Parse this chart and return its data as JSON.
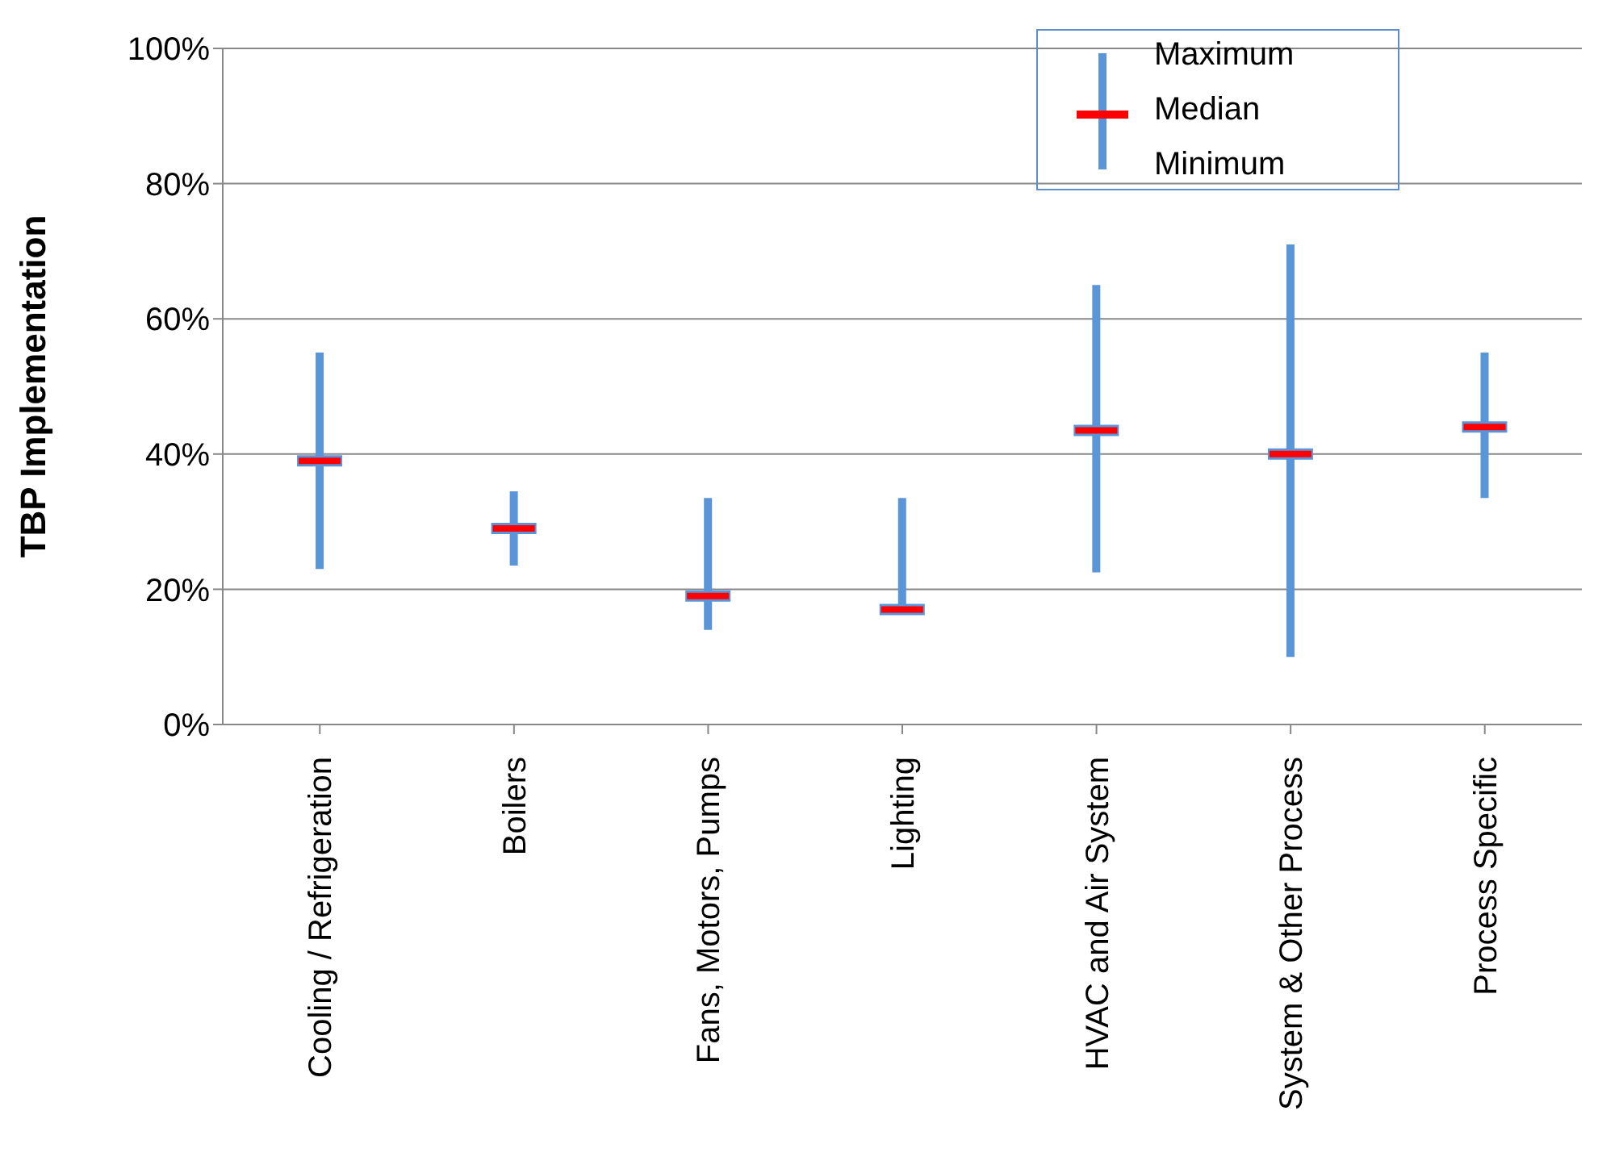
{
  "chart_data": {
    "type": "box",
    "ylabel": "TBP Implementation",
    "categories": [
      "Cooling / Refrigeration",
      "Boilers",
      "Fans, Motors, Pumps",
      "Lighting",
      "HVAC and Air System",
      "System & Other Process",
      "Process Specific"
    ],
    "boxes": [
      {
        "low": 23,
        "q1": 39,
        "median": 39,
        "q3": 39,
        "high": 55
      },
      {
        "low": 23.5,
        "q1": 29,
        "median": 29,
        "q3": 29,
        "high": 34.5
      },
      {
        "low": 14,
        "q1": 19,
        "median": 19,
        "q3": 19,
        "high": 33.5
      },
      {
        "low": 16.5,
        "q1": 17,
        "median": 17,
        "q3": 17,
        "high": 33.5
      },
      {
        "low": 22.5,
        "q1": 43.5,
        "median": 43.5,
        "q3": 43.5,
        "high": 65
      },
      {
        "low": 10,
        "q1": 40,
        "median": 40,
        "q3": 40,
        "high": 71
      },
      {
        "low": 33.5,
        "q1": 44,
        "median": 44,
        "q3": 44,
        "high": 55
      }
    ],
    "color": "#5b95d9",
    "ylim": [
      0,
      100
    ],
    "yticks": [
      {
        "value": 0,
        "label": "0%"
      },
      {
        "value": 20,
        "label": "20%"
      },
      {
        "value": 40,
        "label": "40%"
      },
      {
        "value": 60,
        "label": "60%"
      },
      {
        "value": 80,
        "label": "80%"
      },
      {
        "value": 100,
        "label": "100%"
      }
    ],
    "grid": "y",
    "annotations": [
      "Maximum",
      "Median",
      "Minimum"
    ]
  }
}
